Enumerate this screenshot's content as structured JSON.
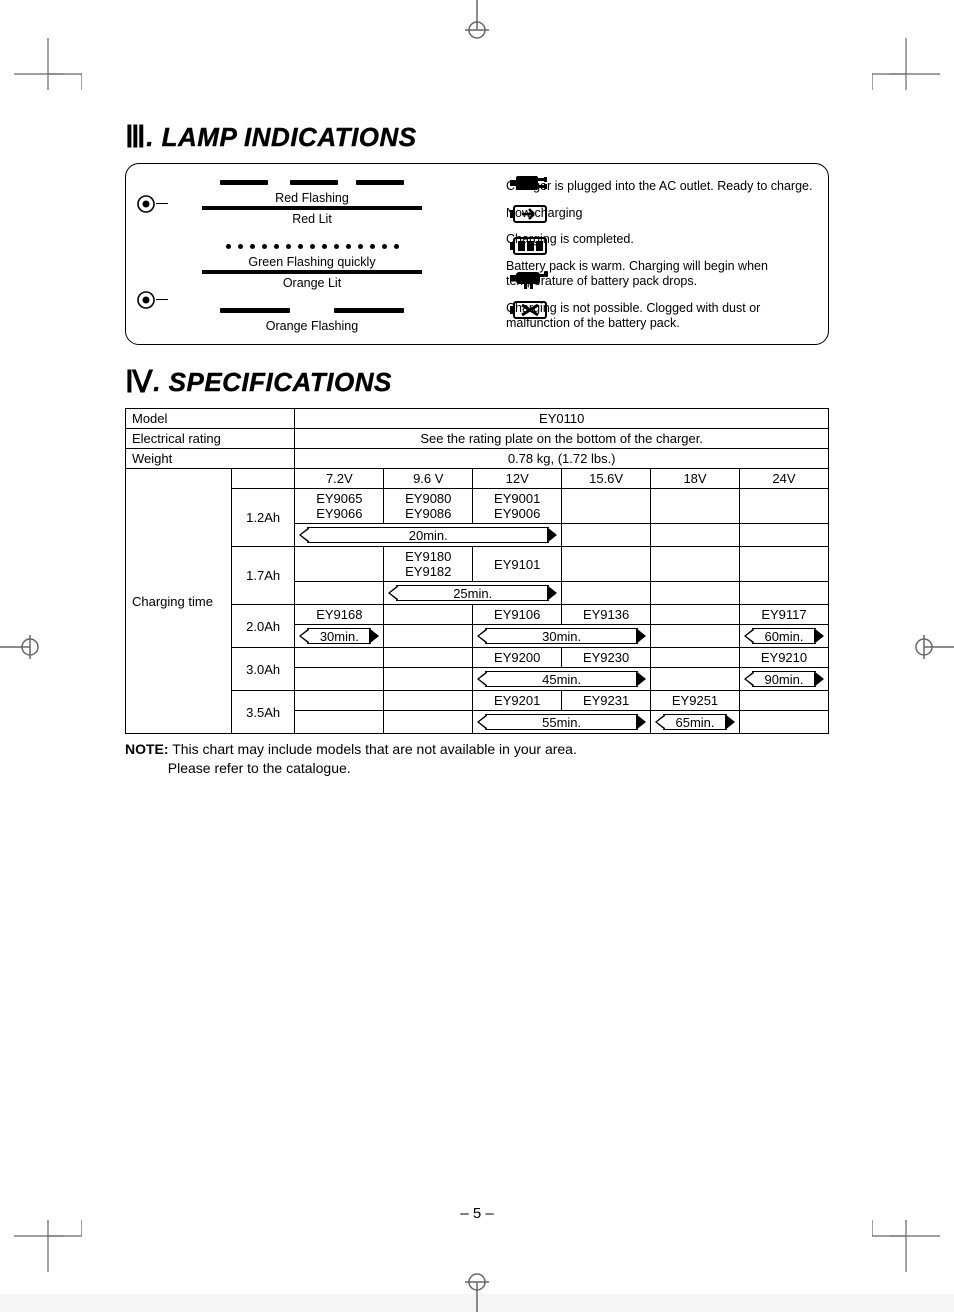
{
  "section3": {
    "numeral": "Ⅲ",
    "title": "LAMP INDICATIONS",
    "rows": [
      {
        "label": "Red Flashing",
        "pattern": "dashes",
        "desc": "Charger is plugged into the AC outlet. Ready to charge."
      },
      {
        "label": "Red Lit",
        "pattern": "solid",
        "desc": "Now charging"
      },
      {
        "label": "Green Flashing quickly",
        "pattern": "dots",
        "desc": "Charging is completed."
      },
      {
        "label": "Orange Lit",
        "pattern": "solid",
        "desc": "Battery pack is warm. Charging will begin when temperature of battery pack drops."
      },
      {
        "label": "Orange Flashing",
        "pattern": "dashes2",
        "desc": "Charging is not possible. Clogged with dust or malfunction of the battery pack."
      }
    ]
  },
  "section4": {
    "numeral": "Ⅳ",
    "title": "SPECIFICATIONS",
    "header_rows": [
      {
        "label": "Model",
        "value": "EY0110"
      },
      {
        "label": "Electrical rating",
        "value": "See the rating plate on the bottom of the charger."
      },
      {
        "label": "Weight",
        "value": "0.78 kg, (1.72 lbs.)"
      }
    ],
    "ct_label": "Charging time",
    "voltages": [
      "7.2V",
      "9.6 V",
      "12V",
      "15.6V",
      "18V",
      "24V"
    ],
    "capacities": [
      {
        "ah": "1.2Ah",
        "models": [
          "EY9065\nEY9066",
          "EY9080\nEY9086",
          "EY9001\nEY9006",
          "",
          "",
          ""
        ],
        "time": {
          "span_start": 0,
          "span_end": 2,
          "text": "20min."
        }
      },
      {
        "ah": "1.7Ah",
        "models": [
          "",
          "EY9180\nEY9182",
          "EY9101",
          "",
          "",
          ""
        ],
        "time": {
          "span_start": 1,
          "span_end": 2,
          "text": "25min."
        }
      },
      {
        "ah": "2.0Ah",
        "models": [
          "EY9168",
          "",
          "EY9106",
          "EY9136",
          "",
          "EY9117"
        ],
        "times": [
          {
            "span_start": 0,
            "span_end": 0,
            "text": "30min."
          },
          {
            "span_start": 2,
            "span_end": 3,
            "text": "30min."
          },
          {
            "span_start": 5,
            "span_end": 5,
            "text": "60min."
          }
        ]
      },
      {
        "ah": "3.0Ah",
        "models": [
          "",
          "",
          "EY9200",
          "EY9230",
          "",
          "EY9210"
        ],
        "times": [
          {
            "span_start": 2,
            "span_end": 3,
            "text": "45min."
          },
          {
            "span_start": 5,
            "span_end": 5,
            "text": "90min."
          }
        ]
      },
      {
        "ah": "3.5Ah",
        "models": [
          "",
          "",
          "EY9201",
          "EY9231",
          "EY9251",
          ""
        ],
        "times": [
          {
            "span_start": 2,
            "span_end": 3,
            "text": "55min."
          },
          {
            "span_start": 4,
            "span_end": 4,
            "text": "65min."
          }
        ]
      }
    ],
    "note_label": "NOTE:",
    "note_text": "This chart may include models that are not available in your area.\nPlease refer to the catalogue."
  },
  "page_number": "– 5 –",
  "colors": {
    "line": "#000000",
    "bg": "#ffffff"
  }
}
